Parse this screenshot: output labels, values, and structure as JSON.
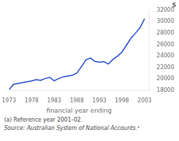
{
  "chart_data": {
    "type": "line",
    "title": "$",
    "xlabel": "financial year ending",
    "annotations": [
      "(a)  Reference year 2001–02.",
      "Source: Australian System of National Accounts.¹"
    ],
    "x": [
      1973,
      1974,
      1975,
      1976,
      1977,
      1978,
      1979,
      1980,
      1981,
      1982,
      1983,
      1984,
      1985,
      1986,
      1987,
      1988,
      1989,
      1990,
      1991,
      1992,
      1993,
      1994,
      1995,
      1996,
      1997,
      1998,
      1999,
      2000,
      2001,
      2002,
      2003
    ],
    "values": [
      18100,
      19050,
      19200,
      19350,
      19500,
      19650,
      19850,
      19750,
      20050,
      20250,
      19650,
      20050,
      20350,
      20500,
      20600,
      21000,
      22100,
      23300,
      23650,
      23050,
      22900,
      23000,
      22600,
      23400,
      23950,
      24700,
      25900,
      27100,
      28000,
      28950,
      30500
    ],
    "color": "#1540c8",
    "xlim": [
      1973,
      2004
    ],
    "xticks": [
      1973,
      1978,
      1983,
      1988,
      1993,
      1998,
      2003
    ],
    "ylim": [
      18000,
      32000
    ],
    "yticks": [
      18000,
      20000,
      22000,
      24000,
      26000,
      28000,
      30000,
      32000
    ],
    "grid": false
  }
}
